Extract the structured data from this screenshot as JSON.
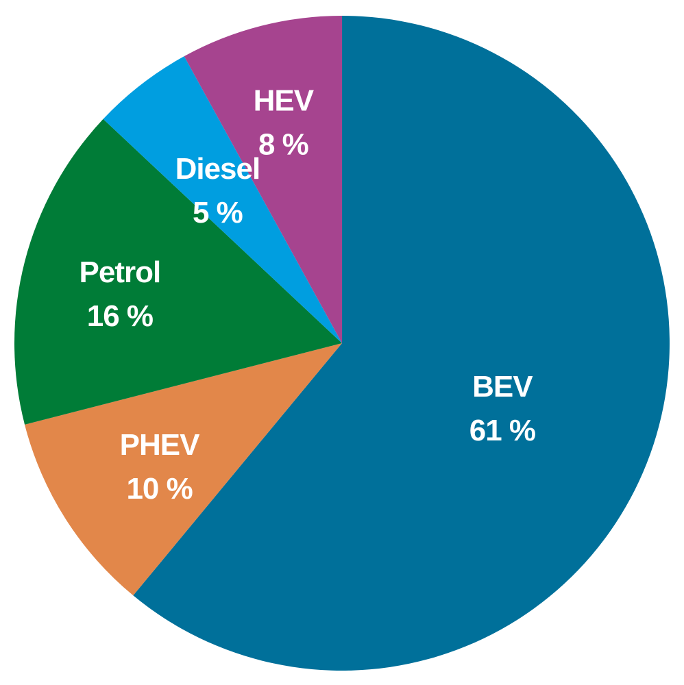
{
  "chart_data": {
    "type": "pie",
    "title": "",
    "start_angle_deg": 0,
    "direction": "clockwise",
    "slices": [
      {
        "label": "BEV",
        "value": 61,
        "value_label": "61 %",
        "color": "#00709a"
      },
      {
        "label": "PHEV",
        "value": 10,
        "value_label": "10 %",
        "color": "#e2874a"
      },
      {
        "label": "Petrol",
        "value": 16,
        "value_label": "16 %",
        "color": "#007c37"
      },
      {
        "label": "Diesel",
        "value": 5,
        "value_label": "5 %",
        "color": "#009ee0"
      },
      {
        "label": "HEV",
        "value": 8,
        "value_label": "8 %",
        "color": "#a6448f"
      }
    ],
    "legend": "none",
    "labels_position": "inside"
  }
}
